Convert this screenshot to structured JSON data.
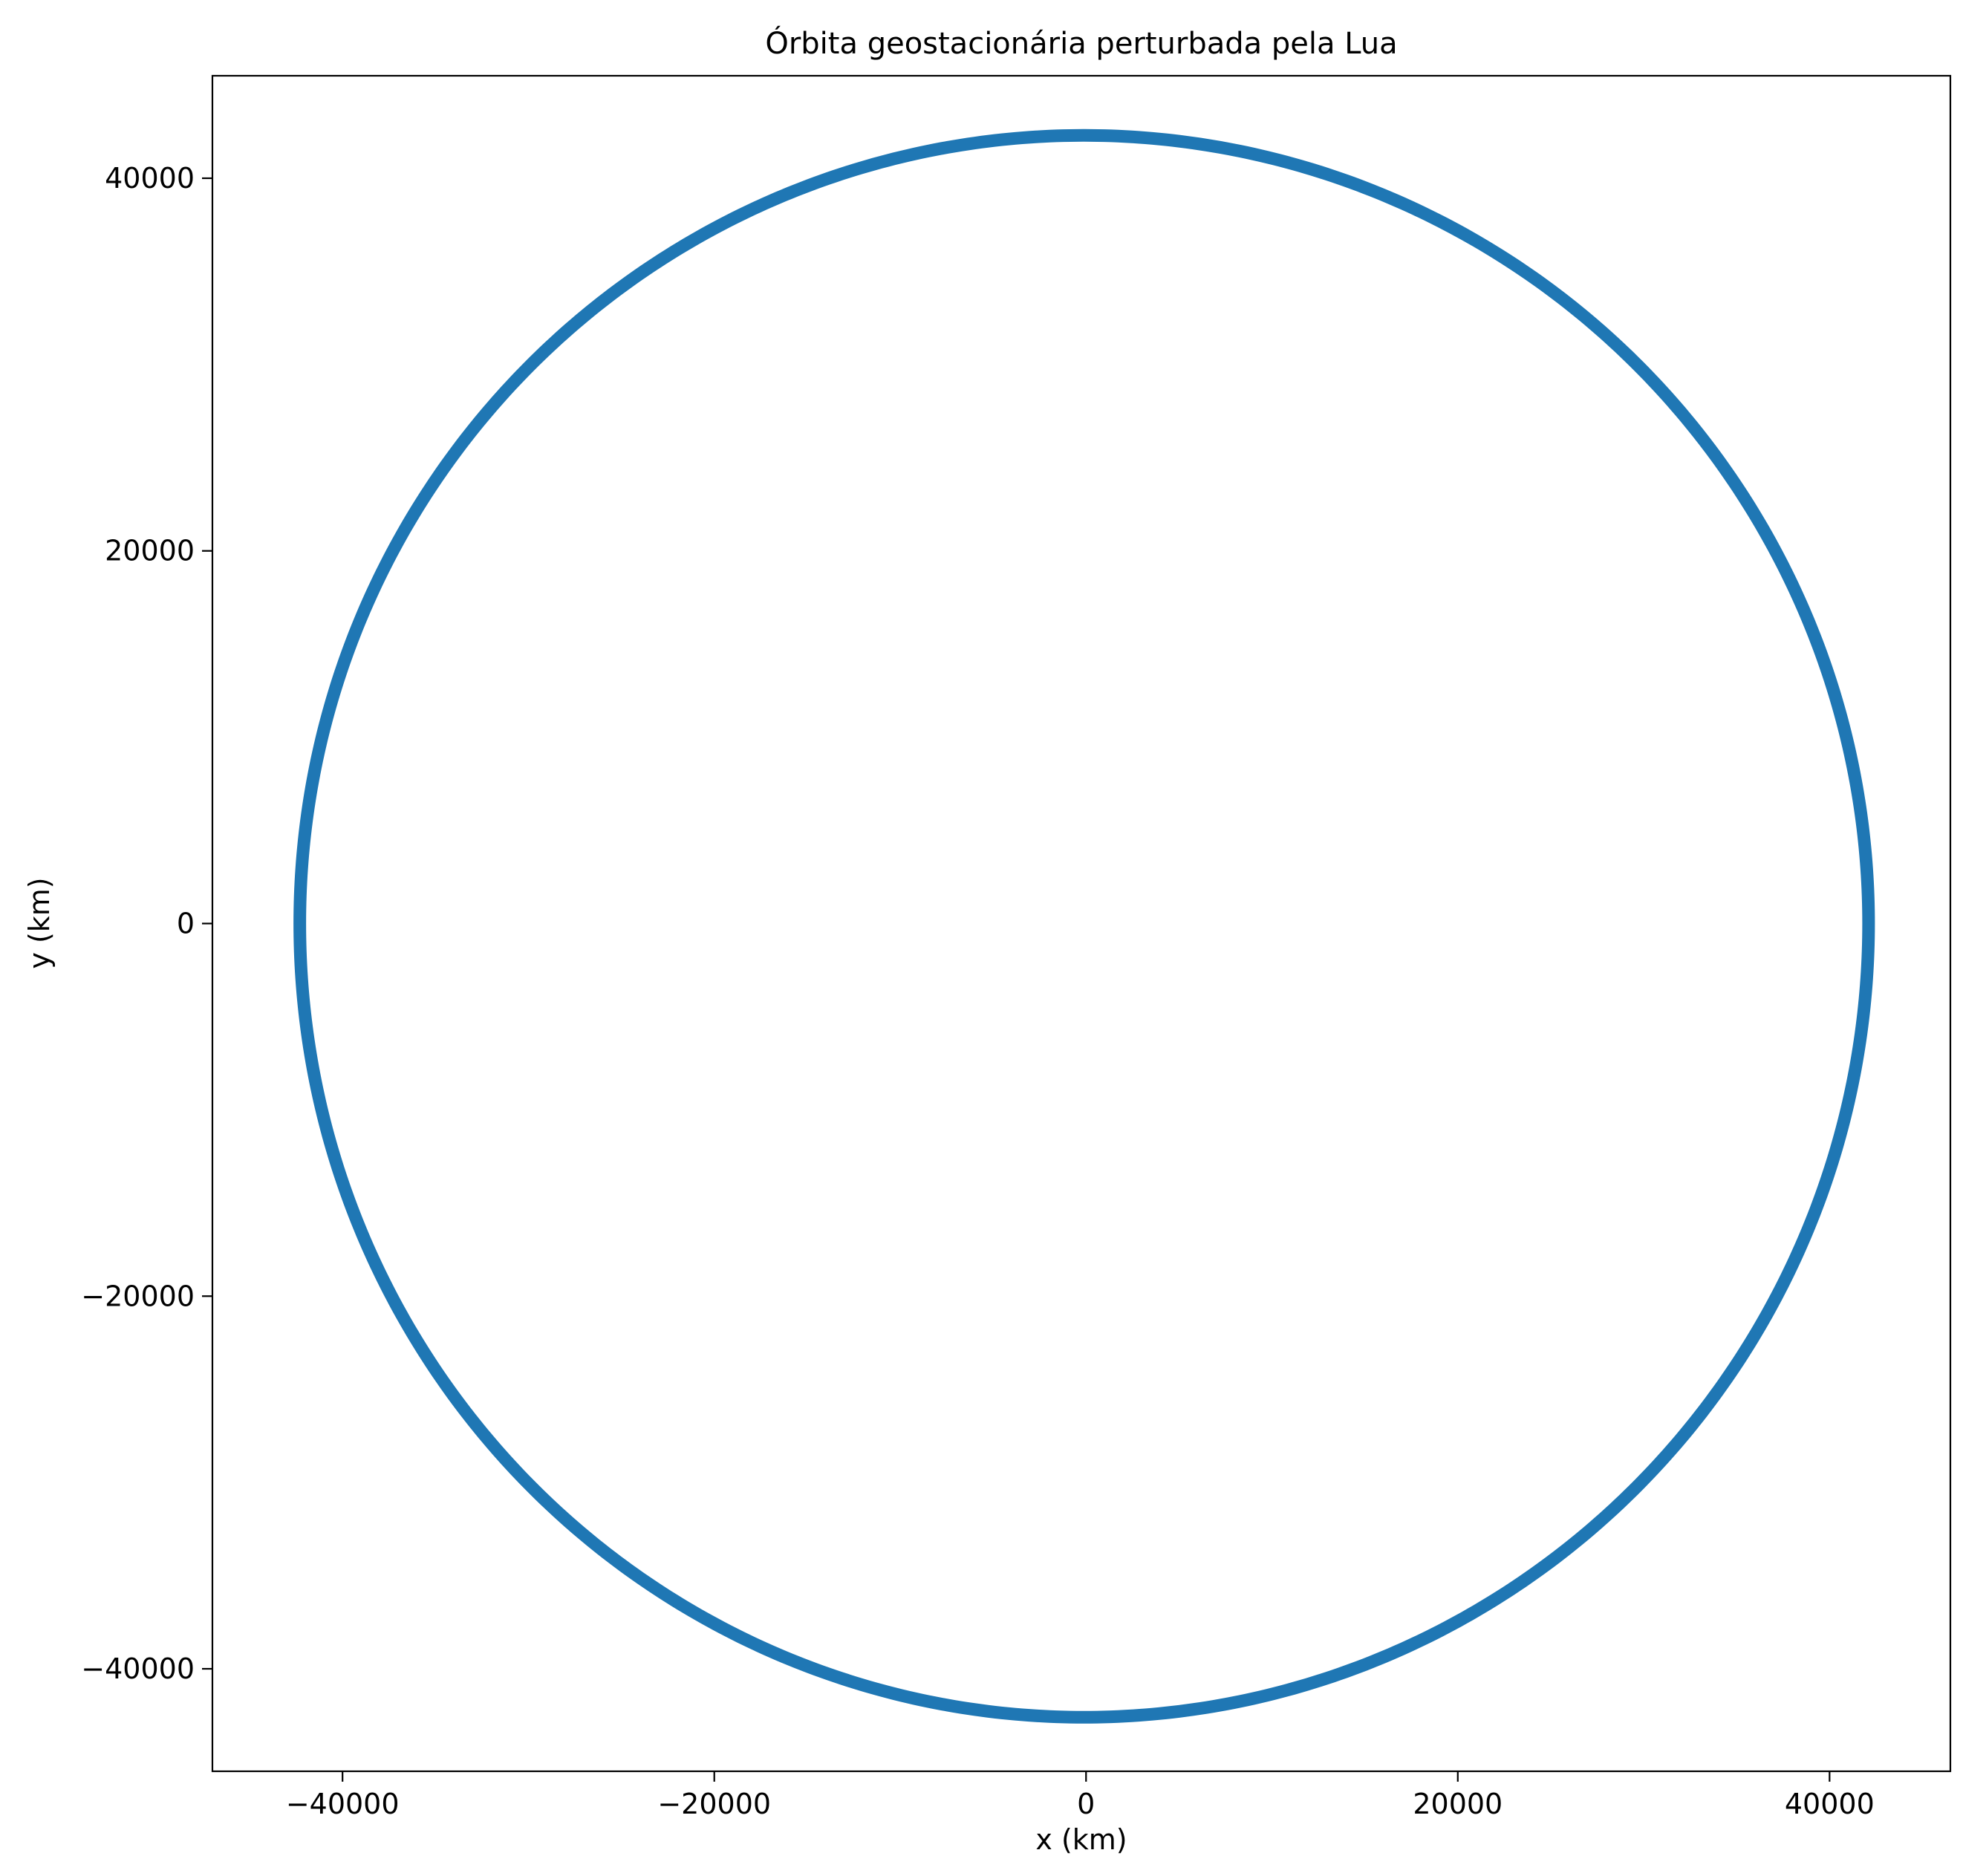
{
  "chart_data": {
    "type": "line",
    "title": "Órbita geostacionária perturbada pela Lua",
    "xlabel": "x (km)",
    "ylabel": "y (km)",
    "xlim": [
      -47000,
      46500
    ],
    "ylim": [
      -45500,
      45500
    ],
    "x_ticks": [
      -40000,
      -20000,
      0,
      20000,
      40000
    ],
    "x_tick_labels": [
      "−40000",
      "−20000",
      "0",
      "20000",
      "40000"
    ],
    "y_ticks": [
      -40000,
      -20000,
      0,
      20000,
      40000
    ],
    "y_tick_labels": [
      "−40000",
      "−20000",
      "0",
      "20000",
      "40000"
    ],
    "grid": false,
    "series": [
      {
        "color": "#1f77b4",
        "shape": "closed orbit",
        "center": [
          -120,
          0
        ],
        "x_range": [
          -42300,
          42100
        ],
        "y_range": [
          -42600,
          42300
        ],
        "x": [
          42100,
          36460,
          21050,
          0,
          -21150,
          -36630,
          -42300,
          -36630,
          -21150,
          0,
          21050,
          36460,
          42100
        ],
        "y": [
          0,
          21150,
          36630,
          42300,
          36630,
          21150,
          0,
          -21300,
          -36890,
          -42600,
          -36890,
          -21300,
          0
        ]
      }
    ]
  }
}
